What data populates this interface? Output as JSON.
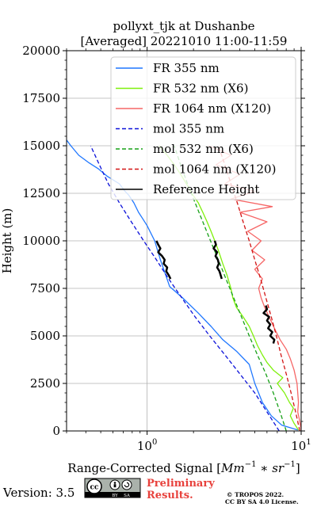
{
  "chart_data": {
    "type": "line",
    "title": "pollyxt_tjk at Dushanbe",
    "subtitle": "[Averaged] 20221010 11:00-11:59",
    "xlabel_text": "Range-Corrected Signal [",
    "xlabel_units": "Mm",
    "xlabel_unit_exp": "−1",
    "xlabel_times": " ∗ ",
    "xlabel_units2": "sr",
    "xlabel_unit2_exp": "−1",
    "xlabel_close": "]",
    "ylabel": "Height (m)",
    "xscale": "log",
    "xlim": [
      0.3,
      10
    ],
    "ylim": [
      0,
      20000
    ],
    "xticks": [
      {
        "v": 1,
        "base": "10",
        "exp": "0"
      },
      {
        "v": 10,
        "base": "10",
        "exp": "1"
      }
    ],
    "yticks": [
      0,
      2500,
      5000,
      7500,
      10000,
      12500,
      15000,
      17500,
      20000
    ],
    "ytick_labels": [
      "0",
      "2500",
      "5000",
      "7500",
      "10000",
      "12500",
      "15000",
      "17500",
      "20000"
    ],
    "grid": true,
    "legend_position": "top-right",
    "series": [
      {
        "name": "FR 355 nm",
        "color": "#1f77ff",
        "dash": "solid",
        "points": [
          [
            9.5,
            50
          ],
          [
            7.5,
            300
          ],
          [
            6.4,
            800
          ],
          [
            5.6,
            1500
          ],
          [
            5.0,
            2500
          ],
          [
            4.8,
            3000
          ],
          [
            4.6,
            3500
          ],
          [
            3.8,
            4200
          ],
          [
            3.1,
            4800
          ],
          [
            2.6,
            5500
          ],
          [
            2.15,
            6200
          ],
          [
            1.7,
            7000
          ],
          [
            1.4,
            7600
          ],
          [
            1.32,
            8200
          ],
          [
            1.22,
            9000
          ],
          [
            1.12,
            10000
          ],
          [
            1.0,
            10800
          ],
          [
            0.93,
            11200
          ],
          [
            0.88,
            11500
          ],
          [
            0.82,
            12000
          ],
          [
            0.76,
            12400
          ],
          [
            0.72,
            12600
          ],
          [
            0.66,
            13000
          ],
          [
            0.55,
            13400
          ],
          [
            0.48,
            13800
          ],
          [
            0.42,
            14100
          ],
          [
            0.36,
            14500
          ],
          [
            0.32,
            15000
          ],
          [
            0.3,
            15300
          ]
        ]
      },
      {
        "name": "FR 532 nm (X6)",
        "color": "#7ff00c",
        "dash": "solid",
        "points": [
          [
            9.6,
            50
          ],
          [
            9.0,
            400
          ],
          [
            8.5,
            800
          ],
          [
            8.9,
            1200
          ],
          [
            8.4,
            1500
          ],
          [
            7.8,
            2000
          ],
          [
            7.0,
            2500
          ],
          [
            7.6,
            2800
          ],
          [
            6.6,
            3200
          ],
          [
            6.0,
            3600
          ],
          [
            5.6,
            4000
          ],
          [
            5.2,
            4500
          ],
          [
            4.9,
            5000
          ],
          [
            4.6,
            5500
          ],
          [
            4.2,
            6000
          ],
          [
            3.8,
            6500
          ],
          [
            3.6,
            7000
          ],
          [
            3.5,
            7500
          ],
          [
            3.3,
            8200
          ],
          [
            3.1,
            8800
          ],
          [
            2.9,
            9500
          ],
          [
            2.75,
            10000
          ],
          [
            2.6,
            10500
          ],
          [
            2.45,
            11000
          ],
          [
            2.3,
            11500
          ],
          [
            2.15,
            12000
          ],
          [
            1.95,
            12500
          ],
          [
            1.8,
            13000
          ],
          [
            1.65,
            13500
          ],
          [
            1.5,
            14000
          ],
          [
            1.35,
            14500
          ],
          [
            1.2,
            15000
          ]
        ]
      },
      {
        "name": "FR 1064 nm (X120)",
        "color": "#f66666",
        "dash": "solid",
        "points": [
          [
            10.0,
            50
          ],
          [
            9.8,
            500
          ],
          [
            9.5,
            1000
          ],
          [
            9.6,
            1500
          ],
          [
            9.4,
            2500
          ],
          [
            9.0,
            3200
          ],
          [
            8.5,
            3800
          ],
          [
            8.0,
            4300
          ],
          [
            7.3,
            4800
          ],
          [
            6.8,
            5300
          ],
          [
            6.2,
            6000
          ],
          [
            5.8,
            6500
          ],
          [
            5.5,
            7000
          ],
          [
            5.3,
            7500
          ],
          [
            5.6,
            8000
          ],
          [
            5.0,
            8500
          ],
          [
            5.8,
            9000
          ],
          [
            4.8,
            9500
          ],
          [
            5.5,
            10000
          ],
          [
            4.5,
            10500
          ],
          [
            6.0,
            11000
          ],
          [
            4.0,
            11500
          ],
          [
            6.5,
            11800
          ],
          [
            3.5,
            12200
          ],
          [
            5.0,
            12600
          ],
          [
            3.2,
            13000
          ],
          [
            4.0,
            13500
          ],
          [
            2.8,
            14000
          ],
          [
            3.5,
            14500
          ],
          [
            2.5,
            15000
          ]
        ]
      },
      {
        "name": "mol 355 nm",
        "color": "#0b11d9",
        "dash": "dashed",
        "points": [
          [
            7.2,
            0
          ],
          [
            6.0,
            1000
          ],
          [
            5.0,
            2000
          ],
          [
            4.0,
            3000
          ],
          [
            3.2,
            4000
          ],
          [
            2.55,
            5000
          ],
          [
            2.05,
            6000
          ],
          [
            1.68,
            7000
          ],
          [
            1.38,
            8000
          ],
          [
            1.15,
            9000
          ],
          [
            0.95,
            10000
          ],
          [
            0.79,
            11000
          ],
          [
            0.66,
            12000
          ],
          [
            0.56,
            13000
          ],
          [
            0.49,
            14000
          ],
          [
            0.43,
            15000
          ]
        ]
      },
      {
        "name": "mol 532 nm (X6)",
        "color": "#16a016",
        "dash": "dashed",
        "points": [
          [
            8.0,
            0
          ],
          [
            7.3,
            1000
          ],
          [
            6.6,
            2000
          ],
          [
            5.9,
            3000
          ],
          [
            5.2,
            4000
          ],
          [
            4.6,
            5000
          ],
          [
            4.1,
            6000
          ],
          [
            3.65,
            7000
          ],
          [
            3.25,
            8000
          ],
          [
            2.9,
            9000
          ],
          [
            2.58,
            10000
          ],
          [
            2.3,
            11000
          ],
          [
            2.05,
            12000
          ],
          [
            1.83,
            13000
          ],
          [
            1.65,
            14000
          ],
          [
            1.5,
            15000
          ]
        ]
      },
      {
        "name": "mol 1064 nm (X120)",
        "color": "#d21414",
        "dash": "dashed",
        "points": [
          [
            9.8,
            0
          ],
          [
            9.2,
            1000
          ],
          [
            8.6,
            2000
          ],
          [
            8.0,
            3000
          ],
          [
            7.4,
            4000
          ],
          [
            6.9,
            5000
          ],
          [
            6.4,
            6000
          ],
          [
            5.9,
            7000
          ],
          [
            5.45,
            8000
          ],
          [
            5.0,
            9000
          ],
          [
            4.6,
            10000
          ],
          [
            4.2,
            11000
          ],
          [
            3.85,
            12000
          ],
          [
            3.5,
            13000
          ],
          [
            3.2,
            14000
          ],
          [
            2.9,
            15000
          ]
        ]
      },
      {
        "name": "Reference Height",
        "color": "#000000",
        "dash": "solid",
        "segments": [
          {
            "series": "FR 355 nm",
            "points": [
              [
                1.15,
                10000
              ],
              [
                1.18,
                9800
              ],
              [
                1.22,
                9600
              ],
              [
                1.18,
                9400
              ],
              [
                1.25,
                9200
              ],
              [
                1.3,
                9000
              ],
              [
                1.28,
                8800
              ],
              [
                1.35,
                8600
              ],
              [
                1.33,
                8400
              ],
              [
                1.38,
                8200
              ],
              [
                1.42,
                8000
              ]
            ]
          },
          {
            "series": "FR 532 nm (X6)",
            "points": [
              [
                2.75,
                10000
              ],
              [
                2.8,
                9800
              ],
              [
                2.7,
                9600
              ],
              [
                2.85,
                9400
              ],
              [
                2.78,
                9200
              ],
              [
                2.88,
                9000
              ],
              [
                2.92,
                8800
              ],
              [
                2.85,
                8600
              ],
              [
                2.95,
                8400
              ],
              [
                3.0,
                8200
              ],
              [
                3.05,
                8000
              ]
            ]
          },
          {
            "series": "FR 1064 nm (X120)",
            "points": [
              [
                5.9,
                6600
              ],
              [
                6.0,
                6400
              ],
              [
                5.7,
                6200
              ],
              [
                6.2,
                6000
              ],
              [
                6.0,
                5800
              ],
              [
                6.3,
                5600
              ],
              [
                6.1,
                5400
              ],
              [
                6.5,
                5200
              ],
              [
                6.3,
                5000
              ],
              [
                6.7,
                4800
              ],
              [
                6.6,
                4600
              ]
            ]
          }
        ]
      }
    ]
  },
  "footer": {
    "version": "Version: 3.5",
    "license_badge": {
      "by": "BY",
      "sa": "SA"
    },
    "preliminary_line1": "Preliminary",
    "preliminary_line2": "Results.",
    "copyright_line1": "© TROPOS 2022.",
    "copyright_line2": "CC BY SA 4.0 License.",
    "preliminary_color": "#e8413c"
  }
}
